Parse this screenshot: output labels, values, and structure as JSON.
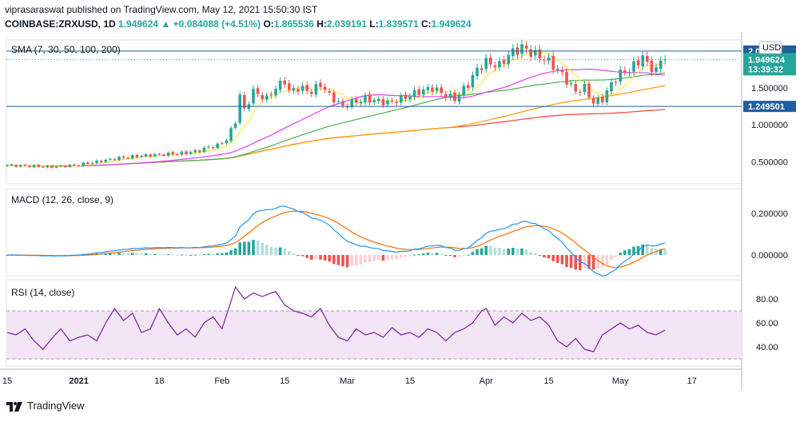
{
  "header": {
    "publisher": "viprasaraswat",
    "published_text": "published on TradingView.com, May 12, 2021 15:50:30 IST",
    "symbol": "COINBASE:ZRXUSD, 1D",
    "last": "1.949624",
    "change_arrow": "▲",
    "change": "+0.084088 (+4.51%)",
    "open_label": "O:",
    "open": "1.865536",
    "high_label": "H:",
    "high": "2.039191",
    "low_label": "L:",
    "low": "1.839571",
    "close_label": "C:",
    "close": "1.949624"
  },
  "footer": {
    "brand": "TradingView"
  },
  "colors": {
    "up": "#26a69a",
    "down": "#ef5350",
    "sma7": "#ffeb3b",
    "sma30": "#e040fb",
    "sma50": "#4caf50",
    "sma100": "#ff9800",
    "sma200": "#f44336",
    "macd": "#2196f3",
    "signal": "#ff6d00",
    "rsi": "#7b1fa2",
    "hline": "#1e5fa0"
  },
  "chart_data": [
    {
      "type": "candlestick",
      "title": "SMA (7, 30, 50, 100, 200)",
      "currency": "USD",
      "y_ticks": [
        "2",
        "1.500000",
        "1.000000",
        "0.500000"
      ],
      "y_tick_values": [
        2.0,
        1.5,
        1.0,
        0.5
      ],
      "ylim": [
        0.2,
        2.15
      ],
      "price_badge": {
        "value": "1.949624",
        "countdown": "13:39:32"
      },
      "hline_badges": [
        {
          "label": "2.0...21",
          "value": 2.0
        },
        {
          "label": "1.249501",
          "value": 1.2495
        }
      ],
      "x_ticks": [
        {
          "label": "15",
          "i": 0
        },
        {
          "label": "2021",
          "i": 16
        },
        {
          "label": "18",
          "i": 34
        },
        {
          "label": "Feb",
          "i": 48
        },
        {
          "label": "15",
          "i": 62
        },
        {
          "label": "Mar",
          "i": 76
        },
        {
          "label": "15",
          "i": 90
        },
        {
          "label": "Apr",
          "i": 107
        },
        {
          "label": "15",
          "i": 121
        },
        {
          "label": "May",
          "i": 137
        },
        {
          "label": "17",
          "i": 153
        }
      ],
      "anchors": [
        [
          0,
          0.45
        ],
        [
          5,
          0.44
        ],
        [
          10,
          0.43
        ],
        [
          15,
          0.45
        ],
        [
          20,
          0.5
        ],
        [
          25,
          0.55
        ],
        [
          30,
          0.58
        ],
        [
          35,
          0.6
        ],
        [
          40,
          0.62
        ],
        [
          43,
          0.65
        ],
        [
          45,
          0.7
        ],
        [
          47,
          0.72
        ],
        [
          49,
          0.8
        ],
        [
          51,
          1.05
        ],
        [
          52,
          1.4
        ],
        [
          53,
          1.2
        ],
        [
          55,
          1.45
        ],
        [
          58,
          1.35
        ],
        [
          60,
          1.5
        ],
        [
          62,
          1.6
        ],
        [
          63,
          1.45
        ],
        [
          65,
          1.5
        ],
        [
          68,
          1.45
        ],
        [
          70,
          1.55
        ],
        [
          72,
          1.4
        ],
        [
          75,
          1.25
        ],
        [
          77,
          1.3
        ],
        [
          80,
          1.35
        ],
        [
          85,
          1.3
        ],
        [
          88,
          1.35
        ],
        [
          90,
          1.4
        ],
        [
          92,
          1.45
        ],
        [
          95,
          1.5
        ],
        [
          98,
          1.4
        ],
        [
          100,
          1.35
        ],
        [
          103,
          1.55
        ],
        [
          105,
          1.75
        ],
        [
          107,
          1.85
        ],
        [
          110,
          1.8
        ],
        [
          112,
          1.95
        ],
        [
          115,
          2.05
        ],
        [
          118,
          1.95
        ],
        [
          120,
          1.9
        ],
        [
          123,
          1.75
        ],
        [
          125,
          1.6
        ],
        [
          127,
          1.45
        ],
        [
          129,
          1.5
        ],
        [
          131,
          1.3
        ],
        [
          133,
          1.35
        ],
        [
          135,
          1.55
        ],
        [
          137,
          1.7
        ],
        [
          139,
          1.75
        ],
        [
          141,
          1.85
        ],
        [
          142,
          1.95
        ],
        [
          143,
          1.8
        ],
        [
          145,
          1.75
        ],
        [
          147,
          1.95
        ]
      ]
    },
    {
      "type": "macd",
      "title": "MACD (12, 26, close, 9)",
      "y_ticks": [
        "0.200000",
        "0.000000"
      ],
      "y_tick_values": [
        0.2,
        0.0
      ],
      "ylim": [
        -0.1,
        0.32
      ]
    },
    {
      "type": "rsi",
      "title": "RSI (14, close)",
      "y_ticks": [
        "80.00",
        "60.00",
        "40.00"
      ],
      "y_tick_values": [
        80,
        60,
        40
      ],
      "band": [
        30,
        70
      ],
      "ylim": [
        24,
        96
      ],
      "anchors": [
        [
          0,
          52
        ],
        [
          2,
          50
        ],
        [
          4,
          55
        ],
        [
          6,
          45
        ],
        [
          8,
          38
        ],
        [
          10,
          47
        ],
        [
          12,
          55
        ],
        [
          14,
          45
        ],
        [
          16,
          48
        ],
        [
          18,
          50
        ],
        [
          20,
          45
        ],
        [
          22,
          60
        ],
        [
          24,
          72
        ],
        [
          26,
          62
        ],
        [
          28,
          68
        ],
        [
          30,
          52
        ],
        [
          32,
          55
        ],
        [
          34,
          72
        ],
        [
          36,
          60
        ],
        [
          38,
          50
        ],
        [
          40,
          55
        ],
        [
          42,
          48
        ],
        [
          44,
          60
        ],
        [
          46,
          65
        ],
        [
          48,
          55
        ],
        [
          50,
          78
        ],
        [
          51,
          90
        ],
        [
          53,
          80
        ],
        [
          55,
          85
        ],
        [
          57,
          82
        ],
        [
          59,
          85
        ],
        [
          60,
          86
        ],
        [
          62,
          75
        ],
        [
          64,
          70
        ],
        [
          66,
          68
        ],
        [
          68,
          65
        ],
        [
          70,
          72
        ],
        [
          72,
          58
        ],
        [
          74,
          48
        ],
        [
          76,
          45
        ],
        [
          78,
          55
        ],
        [
          80,
          50
        ],
        [
          82,
          52
        ],
        [
          84,
          48
        ],
        [
          86,
          56
        ],
        [
          88,
          50
        ],
        [
          90,
          52
        ],
        [
          92,
          48
        ],
        [
          94,
          55
        ],
        [
          96,
          52
        ],
        [
          98,
          45
        ],
        [
          100,
          52
        ],
        [
          102,
          55
        ],
        [
          104,
          60
        ],
        [
          106,
          70
        ],
        [
          107,
          72
        ],
        [
          109,
          58
        ],
        [
          111,
          65
        ],
        [
          113,
          60
        ],
        [
          115,
          68
        ],
        [
          117,
          62
        ],
        [
          119,
          65
        ],
        [
          121,
          58
        ],
        [
          123,
          45
        ],
        [
          125,
          40
        ],
        [
          127,
          47
        ],
        [
          129,
          38
        ],
        [
          131,
          36
        ],
        [
          133,
          50
        ],
        [
          135,
          55
        ],
        [
          137,
          60
        ],
        [
          139,
          55
        ],
        [
          141,
          58
        ],
        [
          143,
          52
        ],
        [
          145,
          50
        ],
        [
          147,
          54
        ]
      ]
    }
  ]
}
